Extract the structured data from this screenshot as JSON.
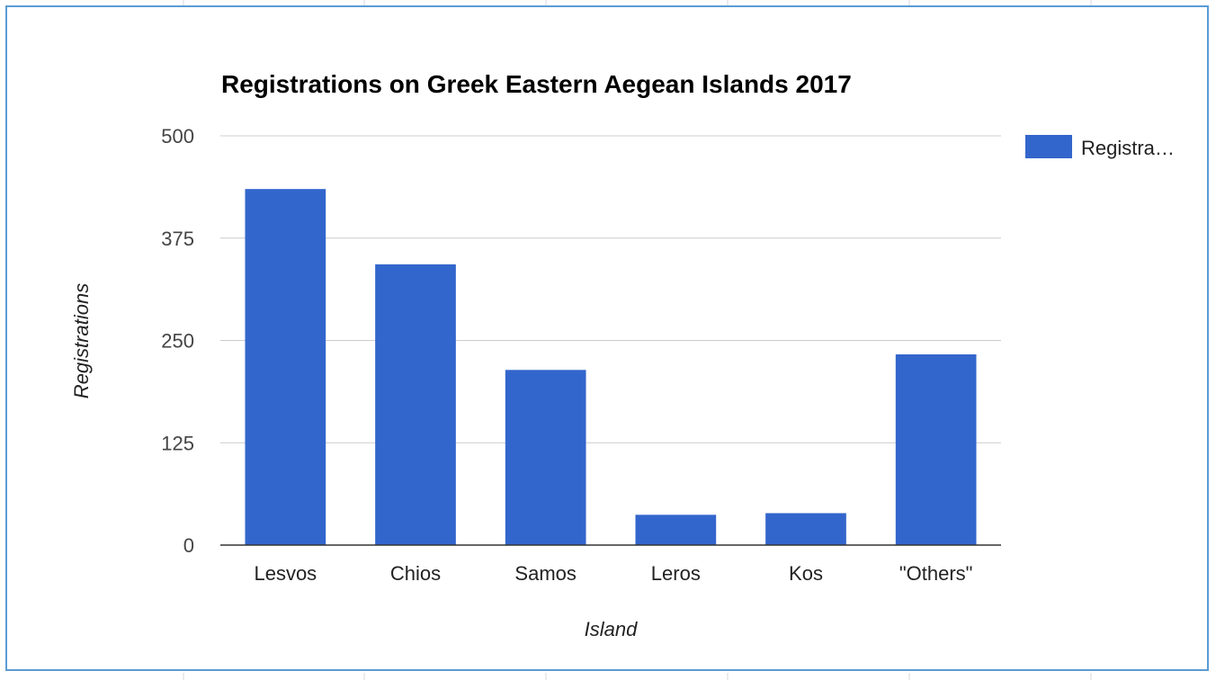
{
  "colors": {
    "bar": "#3366cc",
    "grid": "#cccccc",
    "frame": "#5b9bd5"
  },
  "chart_data": {
    "type": "bar",
    "title": "Registrations on Greek Eastern Aegean Islands 2017",
    "xlabel": "Island",
    "ylabel": "Registrations",
    "categories": [
      "Lesvos",
      "Chios",
      "Samos",
      "Leros",
      "Kos",
      "\"Others\""
    ],
    "series": [
      {
        "name": "Registra…",
        "values": [
          435,
          343,
          214,
          37,
          39,
          233
        ]
      }
    ],
    "ylim": [
      0,
      500
    ],
    "yticks": [
      0,
      125,
      250,
      375,
      500
    ],
    "grid": true,
    "legend": "right"
  }
}
